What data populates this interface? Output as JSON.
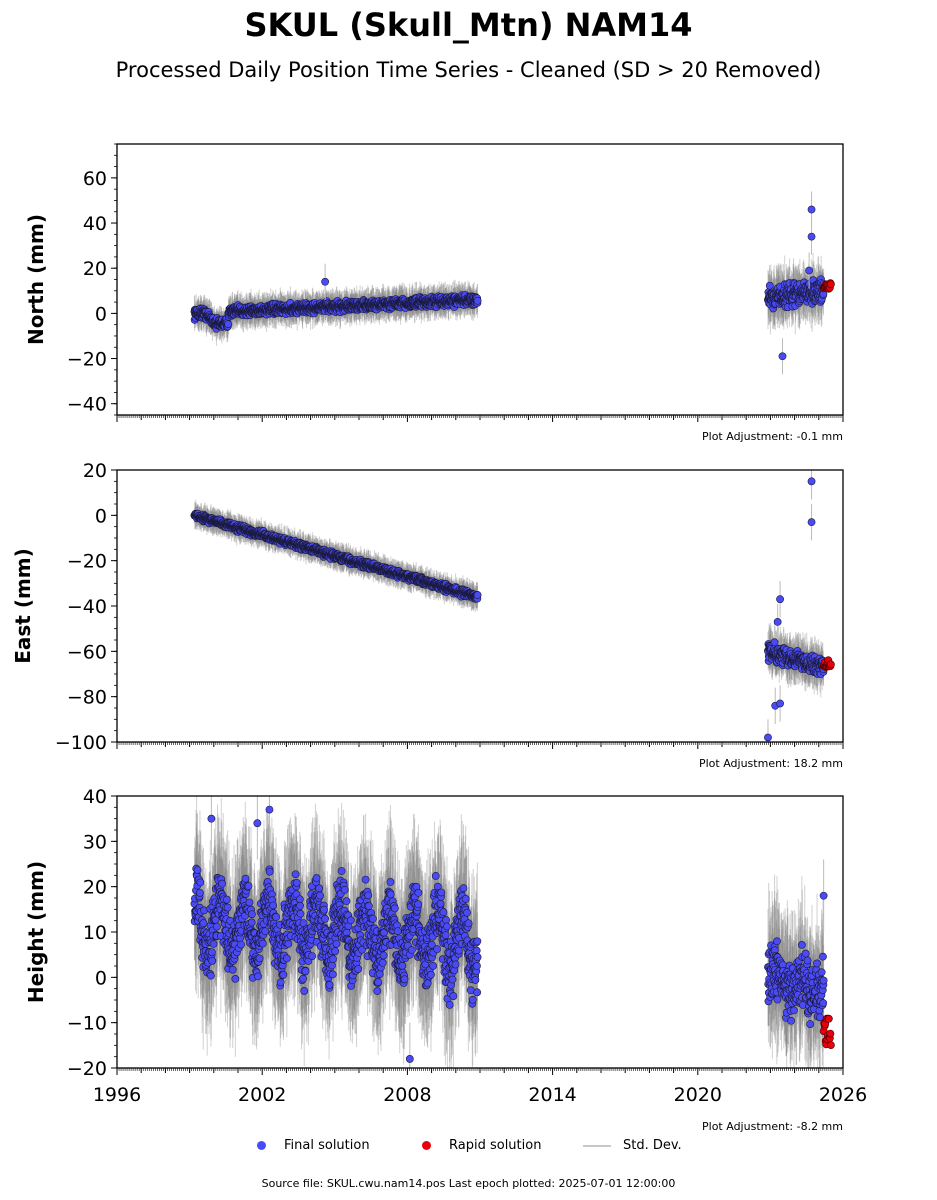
{
  "title": "SKUL (Skull_Mtn) NAM14",
  "subtitle": "Processed Daily Position Time Series - Cleaned (SD > 20 Removed)",
  "footer": "Source file: SKUL.cwu.nam14.pos  Last epoch plotted: 2025-07-01 12:00:00",
  "legend": {
    "final": "Final solution",
    "rapid": "Rapid solution",
    "std": "Std. Dev."
  },
  "colors": {
    "final": "#4b4bf5",
    "rapid": "#e8000b",
    "std": "#c8c8c8"
  },
  "chart_data": [
    {
      "type": "scatter",
      "ylabel": "North (mm)",
      "xlim": [
        1996,
        2026
      ],
      "ylim": [
        -45,
        75
      ],
      "yticks": [
        -40,
        -20,
        0,
        20,
        40,
        60
      ],
      "adjustment": "Plot Adjustment: -0.1 mm",
      "segments": [
        {
          "name": "Final solution",
          "start": 1999.2,
          "end": 2010.9,
          "y_start": 0,
          "y_end": 6,
          "noise": 1.8,
          "dip": [
            1999.6,
            2000.1,
            -5
          ]
        },
        {
          "name": "Final solution",
          "start": 2022.9,
          "end": 2025.2,
          "y_start": 7,
          "y_end": 10,
          "noise": 4
        }
      ],
      "rapid": {
        "start": 2025.2,
        "end": 2025.5,
        "y": 12
      },
      "outliers": [
        [
          2004.6,
          14
        ],
        [
          2023.5,
          -19
        ],
        [
          2024.7,
          46
        ],
        [
          2024.7,
          34
        ],
        [
          2024.6,
          19
        ]
      ]
    },
    {
      "type": "scatter",
      "ylabel": "East (mm)",
      "xlim": [
        1996,
        2026
      ],
      "ylim": [
        -100,
        20
      ],
      "yticks": [
        -100,
        -80,
        -60,
        -40,
        -20,
        0,
        20
      ],
      "adjustment": "Plot Adjustment: 18.2 mm",
      "segments": [
        {
          "name": "Final solution",
          "start": 1999.2,
          "end": 2010.9,
          "y_start": 0,
          "y_end": -36,
          "noise": 1.2
        },
        {
          "name": "Final solution",
          "start": 2022.9,
          "end": 2025.2,
          "y_start": -60,
          "y_end": -67,
          "noise": 3
        }
      ],
      "rapid": {
        "start": 2025.2,
        "end": 2025.5,
        "y": -66
      },
      "outliers": [
        [
          2023.4,
          -37
        ],
        [
          2023.3,
          -47
        ],
        [
          2022.9,
          -98
        ],
        [
          2023.2,
          -84
        ],
        [
          2023.4,
          -83
        ],
        [
          2024.7,
          15
        ],
        [
          2024.7,
          -3
        ]
      ]
    },
    {
      "type": "scatter",
      "ylabel": "Height (mm)",
      "xlim": [
        1996,
        2026
      ],
      "ylim": [
        -20,
        40
      ],
      "yticks": [
        -20,
        -10,
        0,
        10,
        20,
        30,
        40
      ],
      "xticks": [
        1996,
        2002,
        2008,
        2014,
        2020,
        2026
      ],
      "adjustment": "Plot Adjustment: -8.2 mm",
      "segments": [
        {
          "name": "Final solution",
          "start": 1999.2,
          "end": 2010.9,
          "y_start": 12,
          "y_end": 8,
          "noise": 6,
          "seasonal": 6
        },
        {
          "name": "Final solution",
          "start": 2022.9,
          "end": 2025.2,
          "y_start": 0,
          "y_end": -3,
          "noise": 5,
          "seasonal": 2
        }
      ],
      "rapid": {
        "start": 2025.2,
        "end": 2025.5,
        "y": -12
      },
      "outliers": [
        [
          1999.9,
          35
        ],
        [
          2002.3,
          37
        ],
        [
          2008.1,
          -18
        ],
        [
          2025.2,
          18
        ],
        [
          2001.8,
          34
        ]
      ]
    }
  ]
}
